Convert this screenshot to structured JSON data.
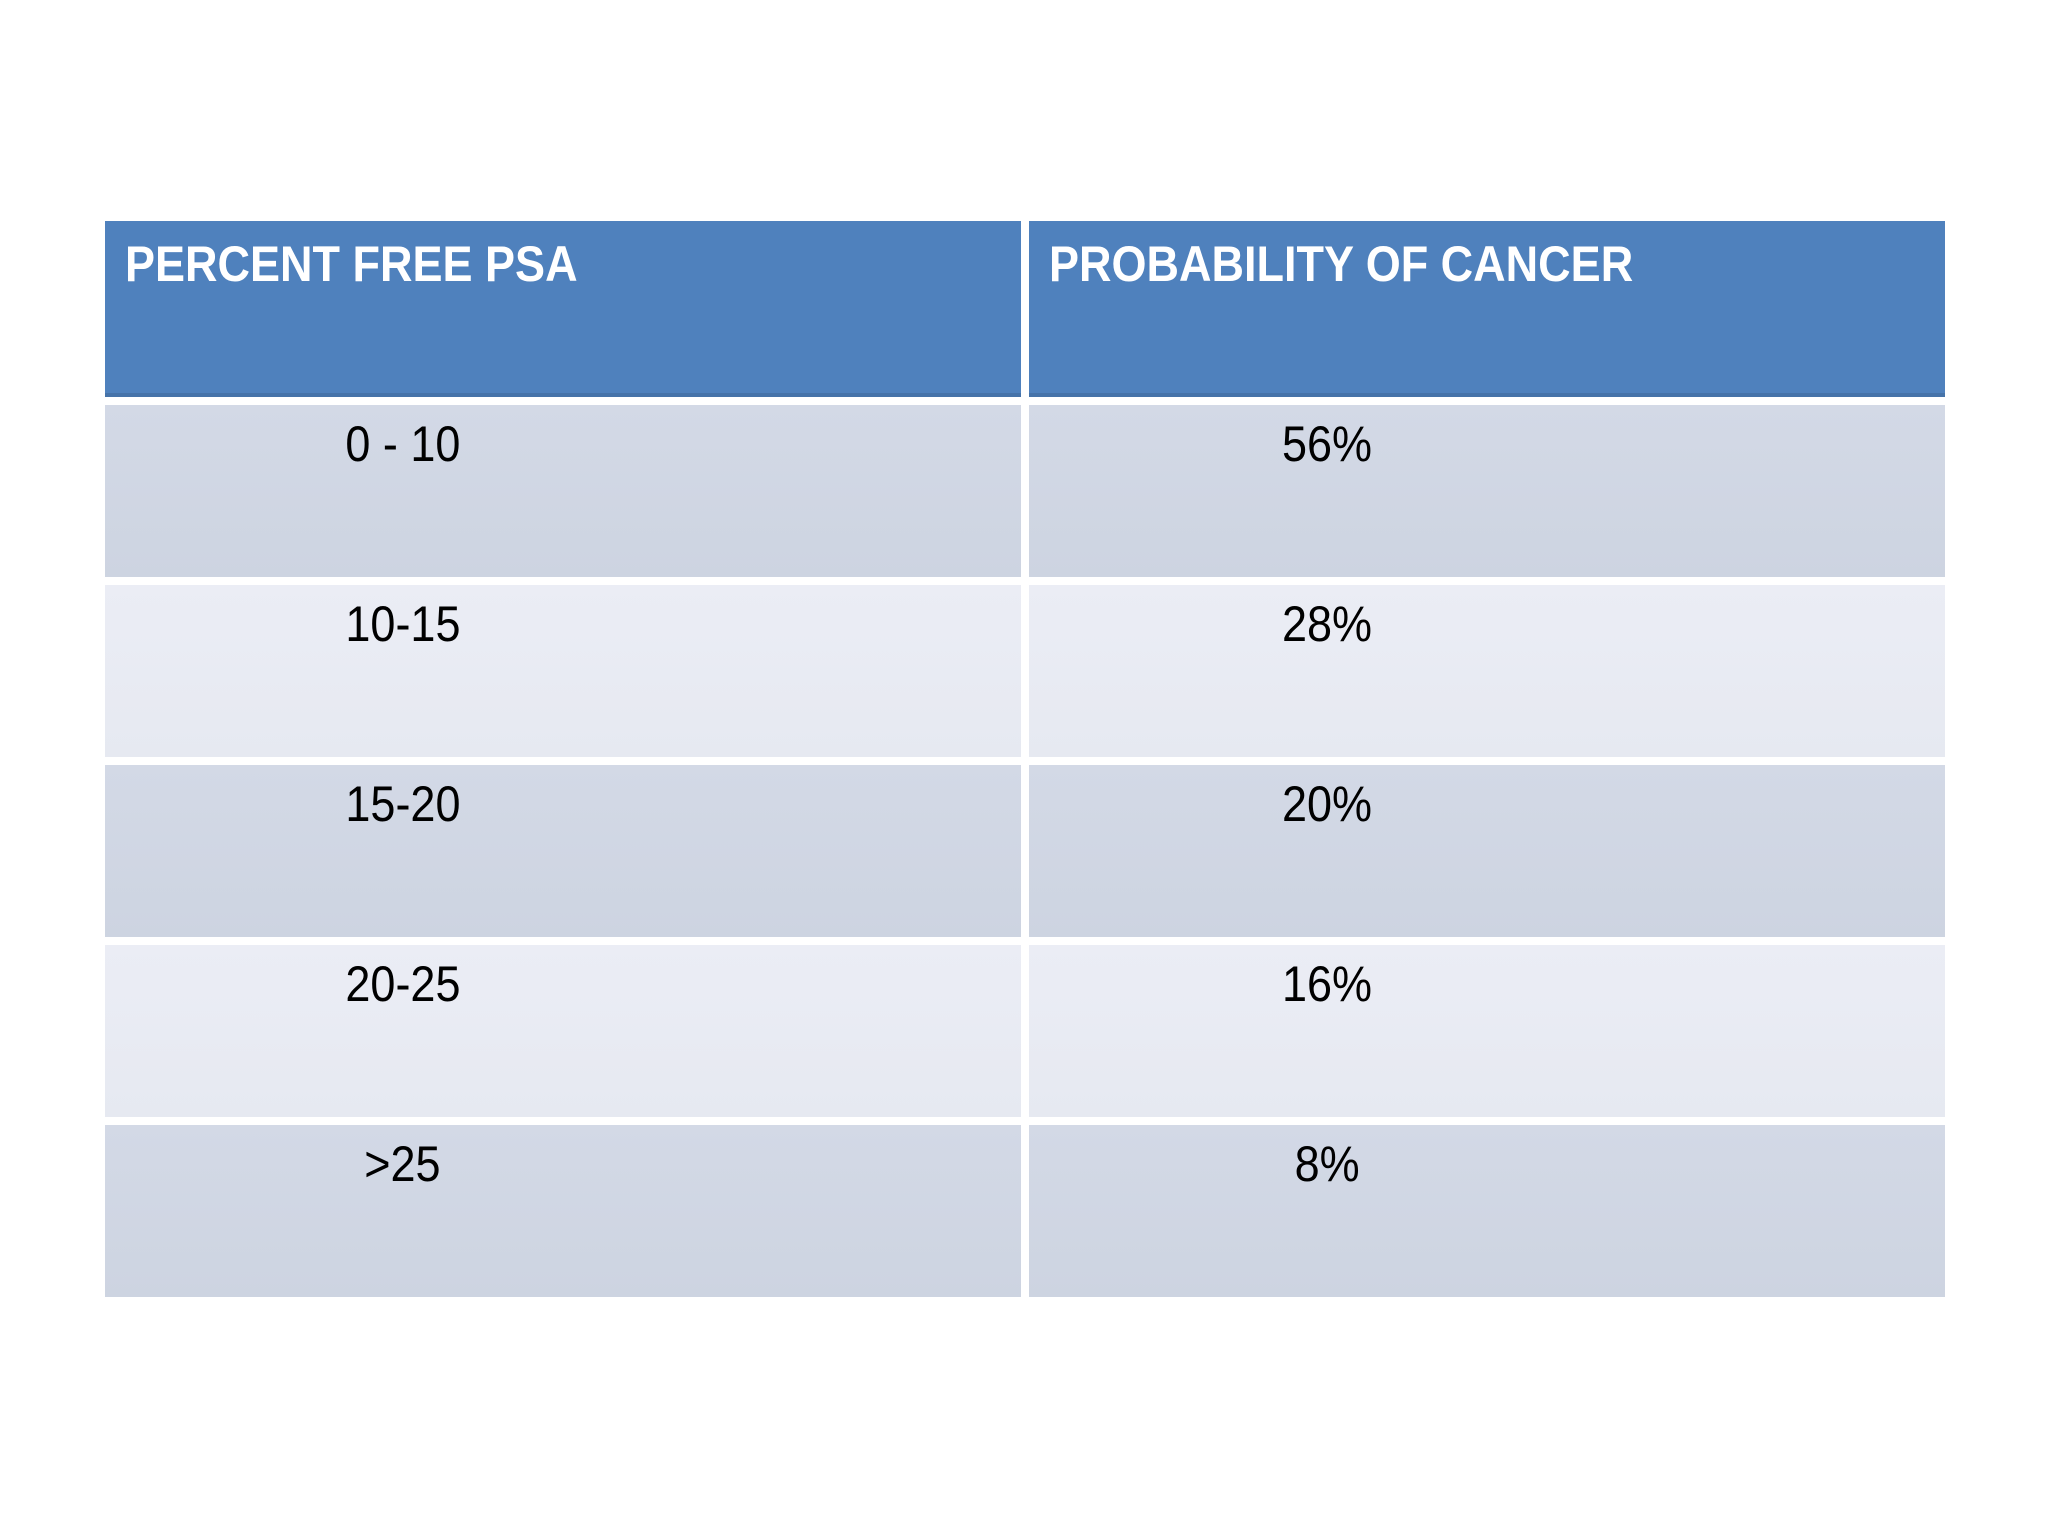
{
  "table": {
    "headers": [
      "PERCENT FREE PSA",
      "PROBABILITY OF CANCER"
    ],
    "rows": [
      {
        "percent_free_psa": "0 - 10",
        "probability_of_cancer": "56%"
      },
      {
        "percent_free_psa": "10-15",
        "probability_of_cancer": "28%"
      },
      {
        "percent_free_psa": "15-20",
        "probability_of_cancer": "20%"
      },
      {
        "percent_free_psa": "20-25",
        "probability_of_cancer": "16%"
      },
      {
        "percent_free_psa": ">25",
        "probability_of_cancer": "8%"
      }
    ],
    "colors": {
      "header_bg": "#4F81BD",
      "header_text": "#FFFFFF",
      "row_dark": "#CFD6E3",
      "row_light": "#E9EBF3",
      "body_text": "#000000",
      "background": "#FFFFFF"
    }
  },
  "chart_data": {
    "type": "table",
    "columns": [
      "PERCENT FREE PSA",
      "PROBABILITY OF CANCER"
    ],
    "rows": [
      [
        "0 - 10",
        "56%"
      ],
      [
        "10-15",
        "28%"
      ],
      [
        "15-20",
        "20%"
      ],
      [
        "20-25",
        "16%"
      ],
      [
        ">25",
        "8%"
      ]
    ]
  }
}
